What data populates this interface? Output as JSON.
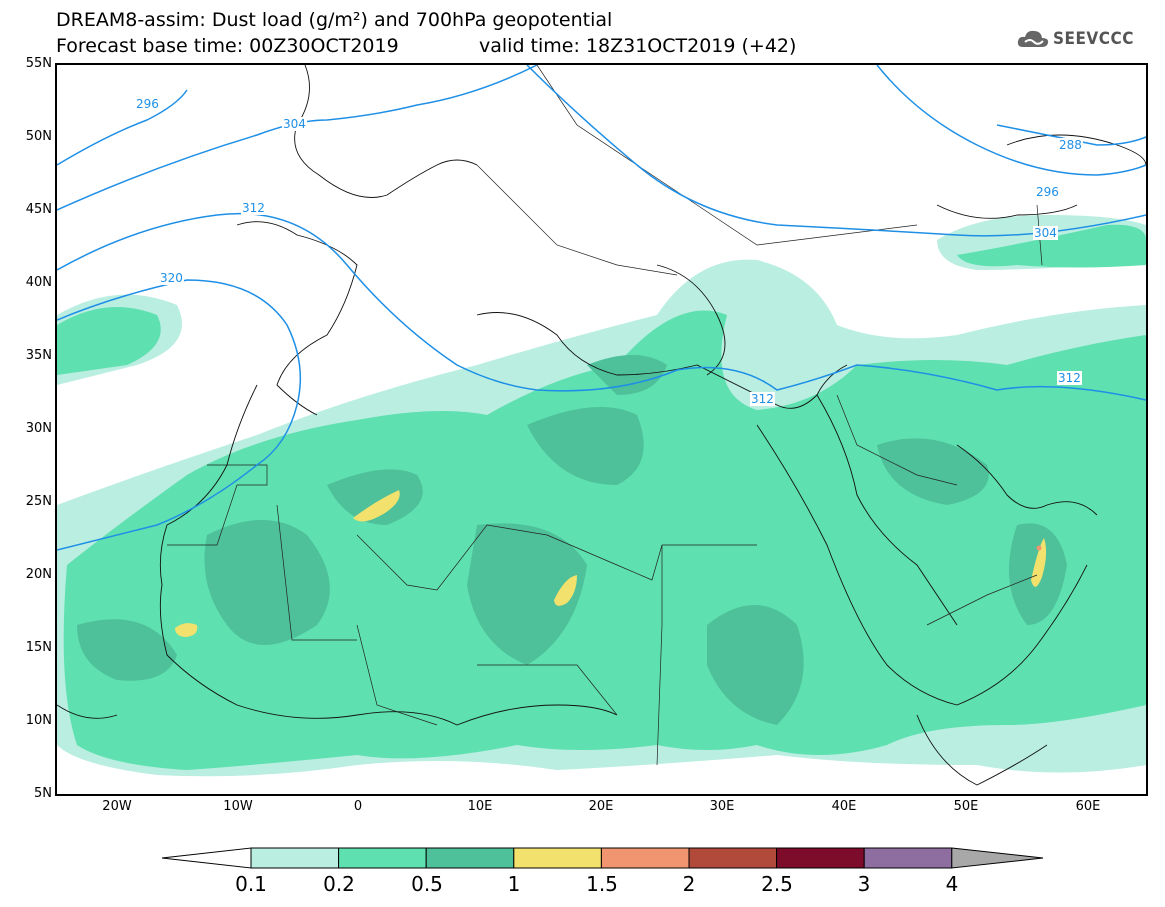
{
  "header": {
    "title_line1": "DREAM8-assim: Dust load (g/m²) and 700hPa geopotential",
    "title_line2": "Forecast base time: 00Z30OCT2019",
    "valid_time": "valid time: 18Z31OCT2019 (+42)"
  },
  "logo": {
    "text": "SEEVCCC",
    "icon": "cloud-icon"
  },
  "axes": {
    "lat_labels": [
      "55N",
      "50N",
      "45N",
      "40N",
      "35N",
      "30N",
      "25N",
      "20N",
      "15N",
      "10N",
      "5N"
    ],
    "lon_labels": [
      "20W",
      "10W",
      "0",
      "10E",
      "20E",
      "30E",
      "40E",
      "50E",
      "60E"
    ]
  },
  "contours": {
    "color": "#1e8fe6",
    "labels": [
      "296",
      "304",
      "312",
      "320",
      "288",
      "296",
      "304",
      "312",
      "312"
    ]
  },
  "legend": {
    "labels": [
      "0.1",
      "0.2",
      "0.5",
      "1",
      "1.5",
      "2",
      "2.5",
      "3",
      "4"
    ],
    "colors": [
      "#ffffff",
      "#b9eee0",
      "#5ee0b0",
      "#4ec09a",
      "#f2e16c",
      "#f09570",
      "#b24a3c",
      "#7d0b2a",
      "#8e6da0",
      "#a8a8a8"
    ]
  }
}
